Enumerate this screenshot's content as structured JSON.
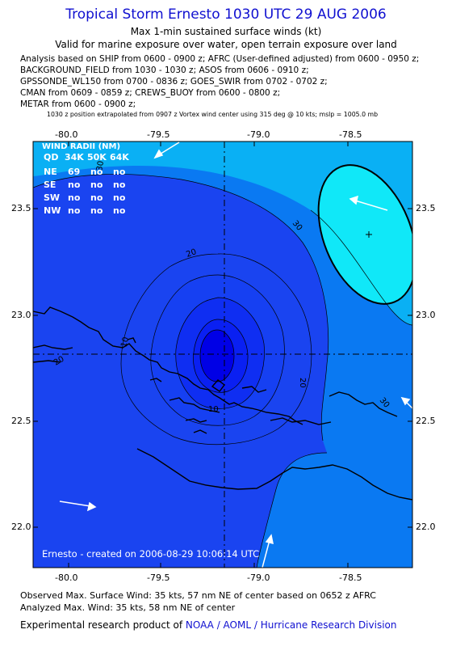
{
  "title": "Tropical Storm Ernesto 1030 UTC 29 AUG 2006",
  "subtitle1": "Max 1-min sustained surface winds (kt)",
  "subtitle2": "Valid for marine exposure over water, open terrain exposure over land",
  "analysis_lines": [
    "Analysis based on  SHIP from 0600 - 0900 z;  AFRC (User-defined adjusted) from 0600 - 0950 z;",
    "BACKGROUND_FIELD from 1030 - 1030 z;  ASOS from 0606 - 0910 z;",
    "GPSSONDE_WL150 from 0700 - 0836 z;  GOES_SWIR from 0702 - 0702 z;",
    "CMAN from 0609 - 0859 z;  CREWS_BUOY from 0600 - 0800 z;",
    "METAR from 0600 - 0900 z;"
  ],
  "position_note": "1030 z position extrapolated from 0907 z Vortex wind center using 315 deg @ 10 kts; mslp = 1005.0 mb",
  "x_ticks": [
    "-80.0",
    "-79.5",
    "-79.0",
    "-78.5"
  ],
  "y_ticks": [
    "23.5",
    "23.0",
    "22.5",
    "22.0"
  ],
  "wind_radii": {
    "title": "WIND RADII (NM)",
    "header": [
      "QD",
      "34K",
      "50K",
      "64K"
    ],
    "rows": [
      [
        "NE",
        "69",
        "no",
        "no"
      ],
      [
        "SE",
        "no",
        "no",
        "no"
      ],
      [
        "SW",
        "no",
        "no",
        "no"
      ],
      [
        "NW",
        "no",
        "no",
        "no"
      ]
    ]
  },
  "contour_labels": [
    "30",
    "30",
    "20",
    "20",
    "30",
    "20",
    "10",
    "10"
  ],
  "created_text": "Ernesto - created on 2006-08-29 10:06:14 UTC",
  "footer": {
    "observed": "Observed Max. Surface Wind: 35 kts, 57 nm NE of center based on 0652 z AFRC",
    "analyzed": "Analyzed Max. Wind: 35 kts, 58 nm NE of center",
    "credit_prefix": "Experimental research product of ",
    "credit_link": "NOAA / AOML / Hurricane Research Division"
  },
  "colors": {
    "title": "#1010d0",
    "band_10": "#0000e6",
    "band_10_20": "#1a44f0",
    "band_20_30": "#0a79f2",
    "band_30_40": "#0ab0f4",
    "band_40": "#10e8f8"
  }
}
